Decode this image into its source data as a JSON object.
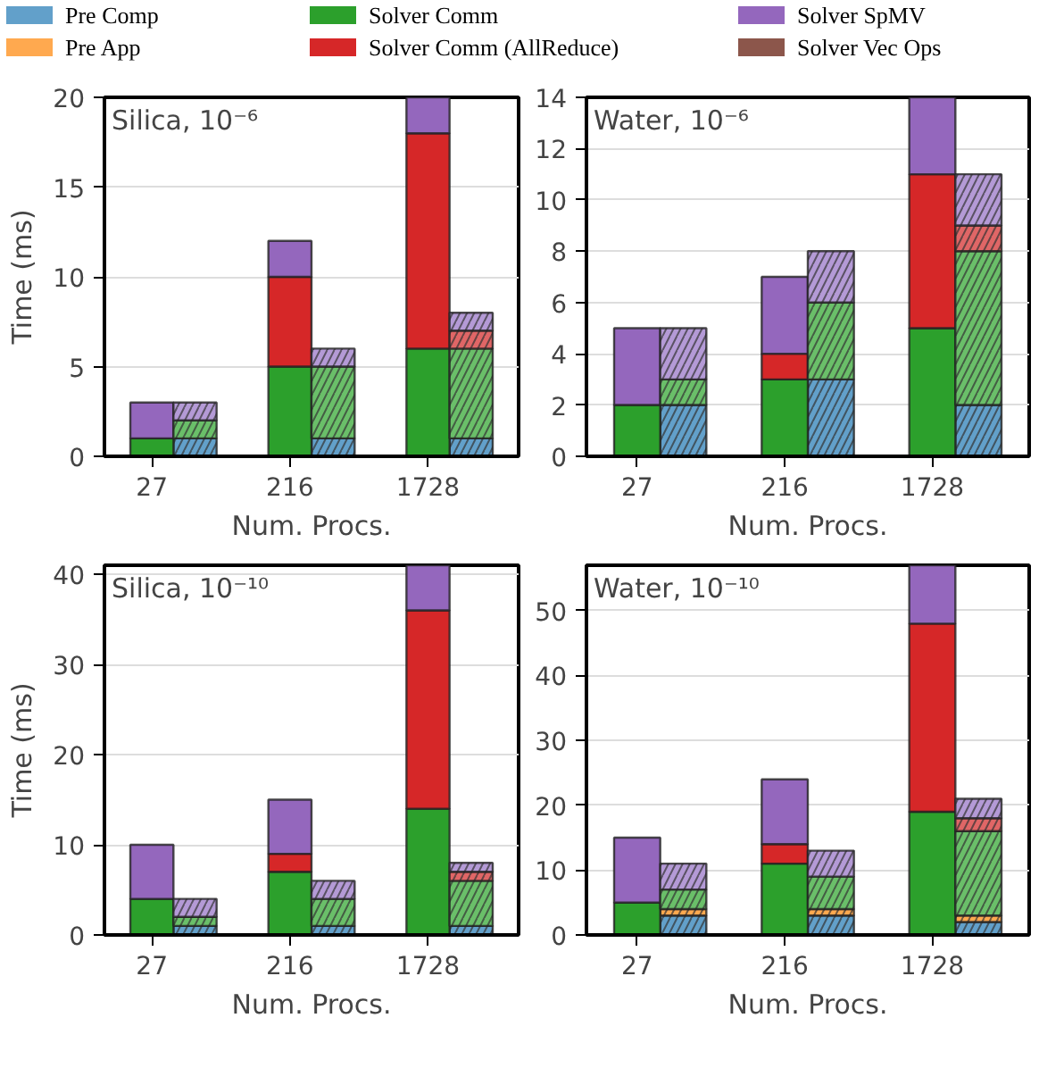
{
  "chart_data": [
    {
      "type": "bar",
      "stacked": true,
      "title": "Silica, 10⁻⁶",
      "xlabel": "Num. Procs.",
      "ylabel": "Time (ms)",
      "categories": [
        "27",
        null,
        "216",
        null,
        "1728",
        null
      ],
      "ylim": [
        0,
        20
      ],
      "yticks": [
        0,
        5,
        10,
        15,
        20
      ],
      "grid": "y",
      "legend": "top",
      "series": [
        {
          "name": "Pre Comp",
          "color": "#62a0ca",
          "values": [
            null,
            1,
            null,
            1,
            null,
            1
          ]
        },
        {
          "name": "Pre App",
          "color": "#ffa94f",
          "values": [
            null,
            null,
            null,
            null,
            null,
            null
          ]
        },
        {
          "name": "Solver Comm",
          "color": "#2ca02c",
          "values": [
            1,
            null,
            5,
            null,
            6,
            null
          ]
        },
        {
          "name": "Solver Comm (AllReduce)",
          "color": "#d62728",
          "values": [
            null,
            null,
            5,
            null,
            12,
            null
          ]
        },
        {
          "name": "Solver SpMV",
          "color": "#9467bd",
          "values": [
            2,
            null,
            2,
            null,
            2,
            null
          ]
        },
        {
          "name": "Solver Vec Ops",
          "color": "#8c564b",
          "values": [
            null,
            null,
            null,
            null,
            null,
            null
          ]
        },
        {
          "color": "#6abf69",
          "values": [
            null,
            1,
            null,
            4,
            null,
            5
          ]
        },
        {
          "color": "#e06666",
          "values": [
            null,
            null,
            null,
            null,
            null,
            1
          ]
        },
        {
          "color": "#b49ad6",
          "values": [
            null,
            1,
            null,
            1,
            null,
            1
          ]
        }
      ]
    },
    {
      "type": "bar",
      "stacked": true,
      "title": "Water, 10⁻⁶",
      "xlabel": "Num. Procs.",
      "categories": [
        "27",
        null,
        "216",
        null,
        "1728",
        null
      ],
      "ylim": [
        0,
        14
      ],
      "yticks": [
        0,
        2,
        4,
        6,
        8,
        10,
        12,
        14
      ],
      "grid": "y",
      "series": [
        {
          "color": "#62a0ca",
          "values": [
            null,
            2,
            null,
            3,
            null,
            2
          ]
        },
        {
          "color": "#2ca02c",
          "values": [
            2,
            null,
            3,
            null,
            5,
            null
          ]
        },
        {
          "color": "#d62728",
          "values": [
            null,
            null,
            1,
            null,
            6,
            null
          ]
        },
        {
          "color": "#9467bd",
          "values": [
            3,
            null,
            3,
            null,
            3,
            null
          ]
        },
        {
          "color": "#6abf69",
          "values": [
            null,
            1,
            null,
            3,
            null,
            6
          ]
        },
        {
          "color": "#e06666",
          "values": [
            null,
            null,
            null,
            null,
            null,
            1
          ]
        },
        {
          "color": "#b49ad6",
          "values": [
            null,
            2,
            null,
            2,
            null,
            2
          ]
        }
      ]
    },
    {
      "type": "bar",
      "stacked": true,
      "title": "Silica, 10⁻¹⁰",
      "xlabel": "Num. Procs.",
      "ylabel": "Time (ms)",
      "categories": [
        "27",
        null,
        "216",
        null,
        "1728",
        null
      ],
      "ylim": [
        0,
        41
      ],
      "yticks": [
        0,
        10,
        20,
        30,
        40
      ],
      "grid": "y",
      "series": [
        {
          "color": "#62a0ca",
          "values": [
            null,
            1,
            null,
            1,
            null,
            1
          ]
        },
        {
          "color": "#2ca02c",
          "values": [
            4,
            null,
            7,
            null,
            14,
            null
          ]
        },
        {
          "color": "#d62728",
          "values": [
            null,
            null,
            2,
            null,
            22,
            null
          ]
        },
        {
          "color": "#9467bd",
          "values": [
            6,
            null,
            6,
            null,
            5,
            null
          ]
        },
        {
          "color": "#6abf69",
          "values": [
            null,
            1,
            null,
            3,
            null,
            5
          ]
        },
        {
          "color": "#e06666",
          "values": [
            null,
            null,
            null,
            null,
            null,
            1
          ]
        },
        {
          "color": "#b49ad6",
          "values": [
            null,
            2,
            null,
            2,
            null,
            1
          ]
        }
      ]
    },
    {
      "type": "bar",
      "stacked": true,
      "title": "Water, 10⁻¹⁰",
      "xlabel": "Num. Procs.",
      "categories": [
        "27",
        null,
        "216",
        null,
        "1728",
        null
      ],
      "ylim": [
        0,
        57
      ],
      "yticks": [
        0,
        10,
        20,
        30,
        40,
        50
      ],
      "grid": "y",
      "series": [
        {
          "color": "#62a0ca",
          "values": [
            null,
            3,
            null,
            3,
            null,
            2
          ]
        },
        {
          "color": "#ffa94f",
          "values": [
            null,
            1,
            null,
            1,
            null,
            1
          ]
        },
        {
          "color": "#2ca02c",
          "values": [
            5,
            null,
            11,
            null,
            19,
            null
          ]
        },
        {
          "color": "#d62728",
          "values": [
            null,
            null,
            3,
            null,
            29,
            null
          ]
        },
        {
          "color": "#9467bd",
          "values": [
            10,
            null,
            10,
            null,
            9,
            null
          ]
        },
        {
          "color": "#6abf69",
          "values": [
            null,
            3,
            null,
            5,
            null,
            13
          ]
        },
        {
          "color": "#e06666",
          "values": [
            null,
            null,
            null,
            null,
            null,
            2
          ]
        },
        {
          "color": "#b49ad6",
          "values": [
            null,
            4,
            null,
            4,
            null,
            3
          ]
        }
      ]
    }
  ]
}
